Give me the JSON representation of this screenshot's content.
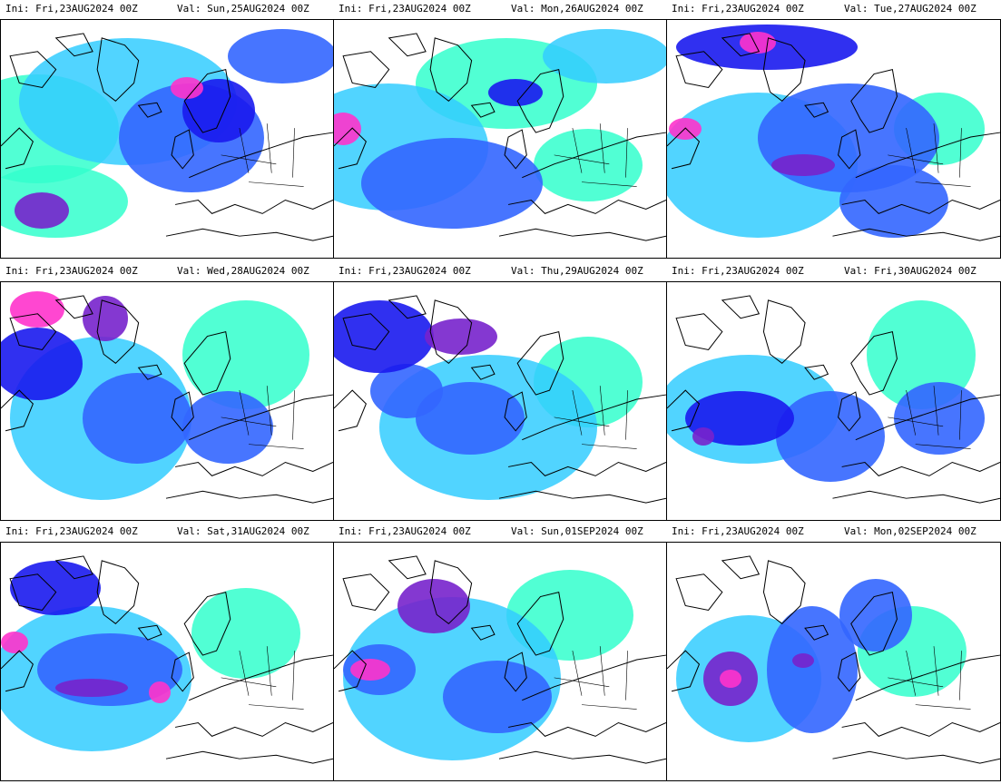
{
  "colors": {
    "light": "#33ffcc",
    "mid": "#33ccff",
    "blue": "#3366ff",
    "dark": "#1a1aee",
    "violet": "#7722cc",
    "magenta": "#ff33cc",
    "coast": "#000000"
  },
  "panels": [
    {
      "ini": "Ini: Fri,23AUG2024 00Z",
      "val": "Val: Sun,25AUG2024 00Z"
    },
    {
      "ini": "Ini: Fri,23AUG2024 00Z",
      "val": "Val: Mon,26AUG2024 00Z"
    },
    {
      "ini": "Ini: Fri,23AUG2024 00Z",
      "val": "Val: Tue,27AUG2024 00Z"
    },
    {
      "ini": "Ini: Fri,23AUG2024 00Z",
      "val": "Val: Wed,28AUG2024 00Z"
    },
    {
      "ini": "Ini: Fri,23AUG2024 00Z",
      "val": "Val: Thu,29AUG2024 00Z"
    },
    {
      "ini": "Ini: Fri,23AUG2024 00Z",
      "val": "Val: Fri,30AUG2024 00Z"
    },
    {
      "ini": "Ini: Fri,23AUG2024 00Z",
      "val": "Val: Sat,31AUG2024 00Z"
    },
    {
      "ini": "Ini: Fri,23AUG2024 00Z",
      "val": "Val: Sun,01SEP2024 00Z"
    },
    {
      "ini": "Ini: Fri,23AUG2024 00Z",
      "val": "Val: Mon,02SEP2024 00Z"
    }
  ]
}
